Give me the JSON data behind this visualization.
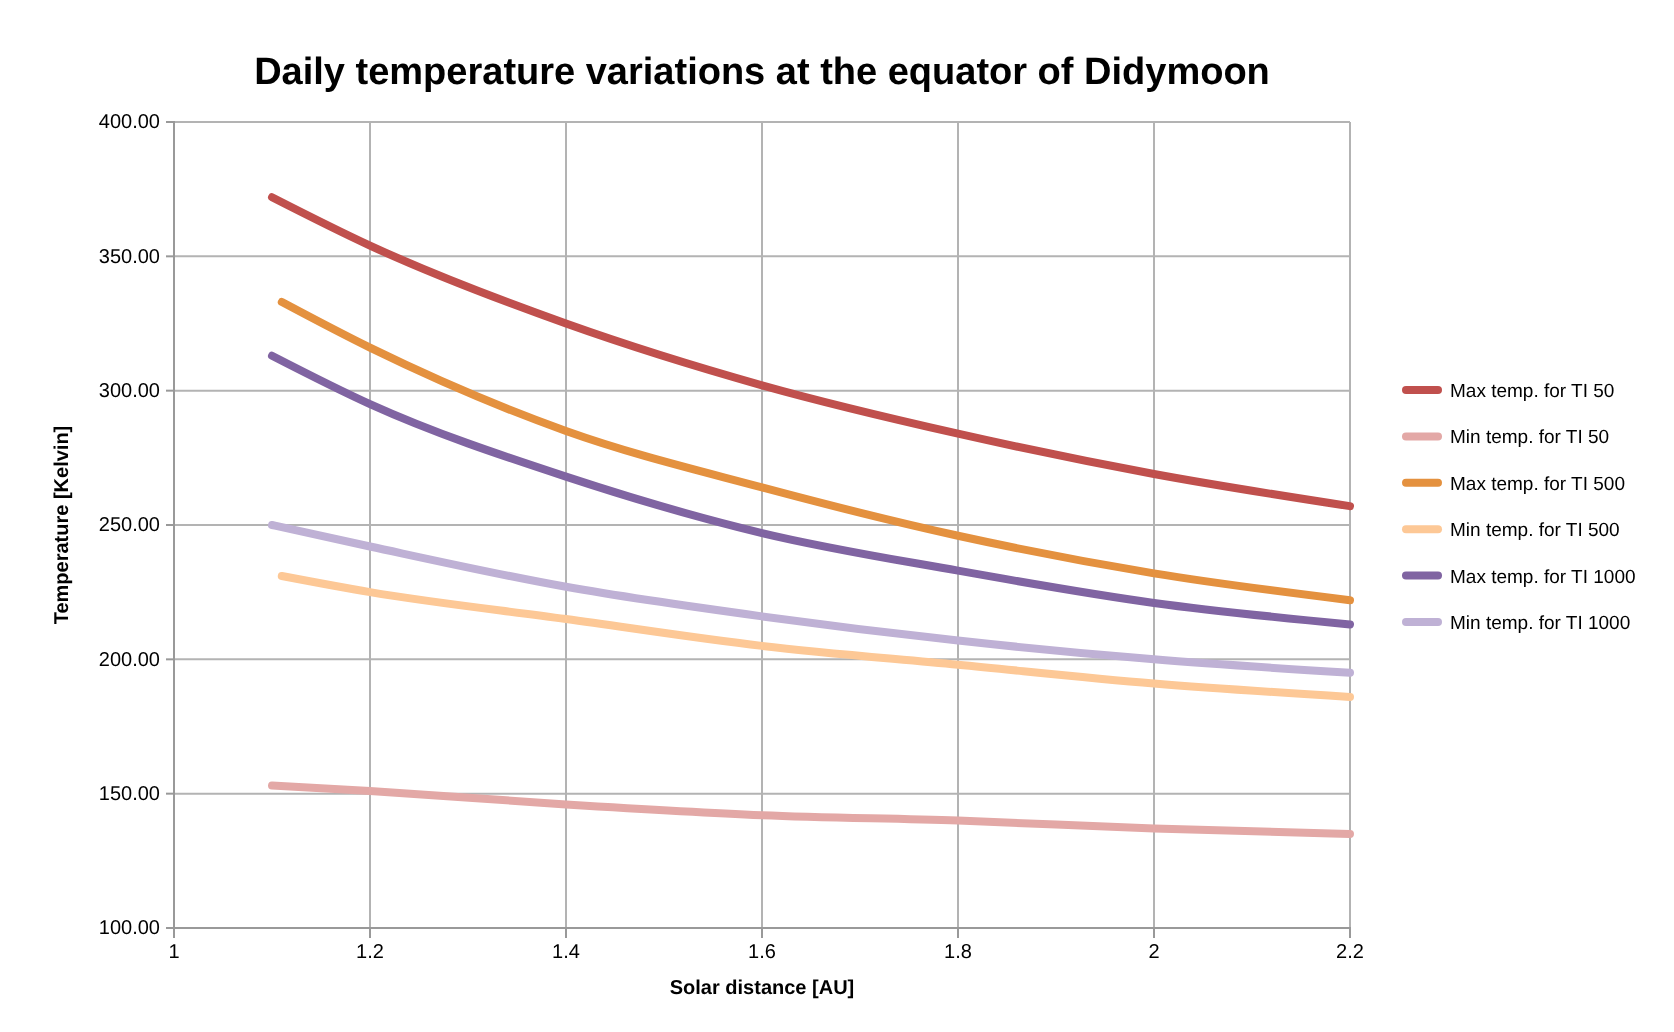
{
  "chart_data": {
    "type": "line",
    "title": "Daily temperature variations at the equator of Didymoon",
    "xlabel": "Solar distance [AU]",
    "ylabel": "Temperature [Kelvin]",
    "xlim": [
      1,
      2.2
    ],
    "xticks": [
      1,
      1.2,
      1.4,
      1.6,
      1.8,
      2,
      2.2
    ],
    "ylim": [
      100,
      400
    ],
    "yticks": [
      {
        "value": 100,
        "label": "100.00"
      },
      {
        "value": 150,
        "label": "150.00"
      },
      {
        "value": 200,
        "label": "200.00"
      },
      {
        "value": 250,
        "label": "250.00"
      },
      {
        "value": 300,
        "label": "300.00"
      },
      {
        "value": 350,
        "label": "350.00"
      },
      {
        "value": 400,
        "label": "400.00"
      }
    ],
    "grid": true,
    "legend": "right",
    "marker": "none",
    "line_style": "solid",
    "series": [
      {
        "name": "Max temp. for TI 50",
        "color": "#c0504d",
        "x": [
          1.1,
          1.2,
          1.4,
          1.6,
          1.8,
          2,
          2.2
        ],
        "values": [
          372,
          354,
          325,
          302,
          284,
          269,
          257
        ]
      },
      {
        "name": "Min temp. for TI 50",
        "color": "#e3a8a6",
        "x": [
          1.1,
          1.2,
          1.4,
          1.6,
          1.8,
          2,
          2.2
        ],
        "values": [
          153,
          151,
          146,
          142,
          140,
          137,
          135
        ]
      },
      {
        "name": "Max temp. for TI 500",
        "color": "#e4913f",
        "x": [
          1.11,
          1.2,
          1.4,
          1.6,
          1.8,
          2,
          2.2
        ],
        "values": [
          333,
          316,
          285,
          264,
          246,
          232,
          222
        ]
      },
      {
        "name": "Min temp. for TI 500",
        "color": "#fdc896",
        "x": [
          1.11,
          1.2,
          1.4,
          1.6,
          1.8,
          2,
          2.2
        ],
        "values": [
          231,
          225,
          215,
          205,
          198,
          191,
          186
        ]
      },
      {
        "name": "Max temp. for TI 1000",
        "color": "#8064a2",
        "x": [
          1.1,
          1.2,
          1.4,
          1.6,
          1.8,
          2,
          2.2
        ],
        "values": [
          313,
          295,
          268,
          247,
          233,
          221,
          213
        ]
      },
      {
        "name": "Min temp. for TI 1000",
        "color": "#bfb1d5",
        "x": [
          1.1,
          1.2,
          1.4,
          1.6,
          1.8,
          2,
          2.2
        ],
        "values": [
          250,
          242,
          227,
          216,
          207,
          200,
          195
        ]
      }
    ]
  }
}
